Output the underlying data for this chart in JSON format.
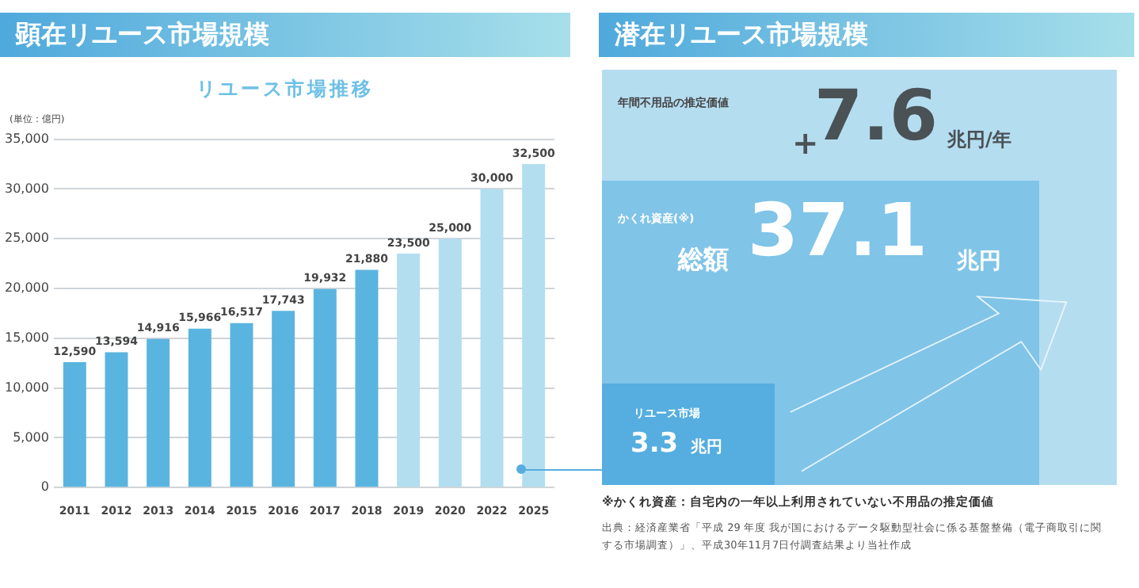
{
  "chart_data": [
    {
      "type": "bar",
      "title": "顕在リユース市場規模",
      "subtitle": "リユース市場推移",
      "ylabel": "(単位：億円)",
      "categories": [
        "2011",
        "2012",
        "2013",
        "2014",
        "2015",
        "2016",
        "2017",
        "2018",
        "2019",
        "2020",
        "2022",
        "2025"
      ],
      "values": [
        12590,
        13594,
        14916,
        15966,
        16517,
        17743,
        19932,
        21880,
        23500,
        25000,
        30000,
        32500
      ],
      "colors": [
        "#5ab4e0",
        "#5ab4e0",
        "#5ab4e0",
        "#5ab4e0",
        "#5ab4e0",
        "#5ab4e0",
        "#5ab4e0",
        "#5ab4e0",
        "#b3def0",
        "#b3def0",
        "#b3def0",
        "#b3def0"
      ],
      "value_labels": [
        "12,590",
        "13,594",
        "14,916",
        "15,966",
        "16,517",
        "17,743",
        "19,932",
        "21,880",
        "23,500",
        "25,000",
        "30,000",
        "32,500"
      ],
      "ylim": [
        0,
        35000
      ],
      "yticks": [
        {
          "value": 0,
          "label": "0"
        },
        {
          "value": 5000,
          "label": "5,000"
        },
        {
          "value": 10000,
          "label": "10,000"
        },
        {
          "value": 15000,
          "label": "15,000"
        },
        {
          "value": 20000,
          "label": "20,000"
        },
        {
          "value": 25000,
          "label": "25,000"
        },
        {
          "value": 30000,
          "label": "30,000"
        },
        {
          "value": 35000,
          "label": "35,000"
        }
      ],
      "grid": "y"
    },
    {
      "type": "other",
      "title": "潜在リユース市場規模",
      "annotations": [
        "年間不用品の推定価値",
        "+",
        "7.6",
        "兆円/年",
        "かくれ資産(※)",
        "総額",
        "37.1",
        "兆円",
        "リユース市場",
        "3.3",
        "兆円",
        "※かくれ資産：自宅内の一年以上利用されていない不用品の推定価値",
        "出典：経済産業省「平成 29 年度 我が国におけるデータ駆動型社会に係る基盤整備（電子商取引に関する市場調査）」、平成30年11月7日付調査結果より当社作成"
      ]
    }
  ]
}
